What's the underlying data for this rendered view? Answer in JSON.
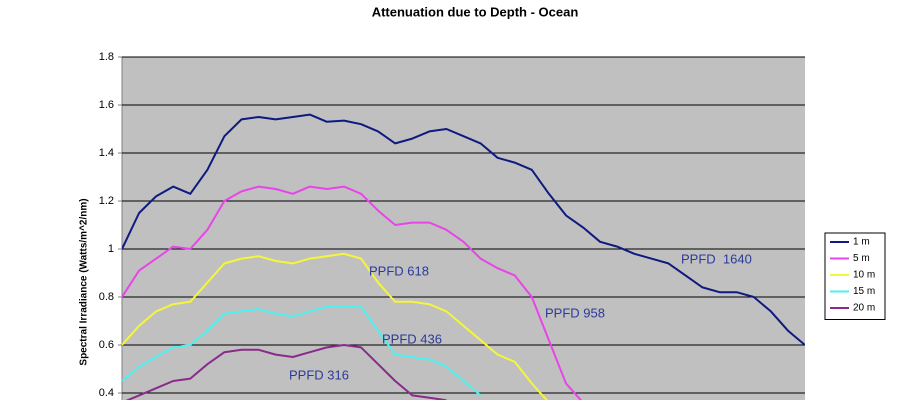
{
  "chart_data": {
    "type": "line",
    "title": "Attenuation due to Depth - Ocean",
    "y_label": "Spectral Irradiance (Watts/m^2/nm)",
    "categories": [
      null,
      null,
      null,
      null,
      null,
      null,
      null,
      null,
      null,
      null,
      null,
      null,
      null,
      null,
      null,
      null,
      null,
      null,
      null,
      null,
      null,
      null,
      null,
      null,
      null,
      null,
      null,
      null,
      null,
      null,
      null,
      null,
      null,
      null,
      null,
      null,
      null,
      null,
      null,
      null,
      null
    ],
    "series": [
      {
        "name": "1 m",
        "color": "#0d1a80",
        "values": [
          1.0,
          1.15,
          1.22,
          1.26,
          1.23,
          1.33,
          1.47,
          1.54,
          1.55,
          1.54,
          1.55,
          1.56,
          1.53,
          1.535,
          1.52,
          1.49,
          1.44,
          1.46,
          1.49,
          1.5,
          1.47,
          1.44,
          1.38,
          1.36,
          1.33,
          1.23,
          1.14,
          1.09,
          1.03,
          1.01,
          0.98,
          0.96,
          0.94,
          0.89,
          0.84,
          0.82,
          0.82,
          0.8,
          0.74,
          0.66,
          0.6
        ]
      },
      {
        "name": "5 m",
        "color": "#e845e8",
        "values": [
          0.8,
          0.91,
          0.96,
          1.01,
          1.0,
          1.08,
          1.2,
          1.24,
          1.26,
          1.25,
          1.23,
          1.26,
          1.25,
          1.26,
          1.23,
          1.16,
          1.1,
          1.11,
          1.11,
          1.08,
          1.03,
          0.96,
          0.92,
          0.89,
          0.8,
          0.62,
          0.44,
          0.36,
          null,
          null,
          null,
          null,
          null,
          null,
          null,
          null,
          null,
          null,
          null,
          null,
          null
        ]
      },
      {
        "name": "10 m",
        "color": "#f5f53a",
        "values": [
          0.6,
          0.68,
          0.74,
          0.77,
          0.78,
          0.86,
          0.94,
          0.96,
          0.97,
          0.95,
          0.94,
          0.96,
          0.97,
          0.98,
          0.96,
          0.86,
          0.78,
          0.78,
          0.77,
          0.74,
          0.68,
          0.62,
          0.56,
          0.53,
          0.44,
          0.36,
          null,
          null,
          null,
          null,
          null,
          null,
          null,
          null,
          null,
          null,
          null,
          null,
          null,
          null,
          null
        ]
      },
      {
        "name": "15 m",
        "color": "#4ef0f0",
        "values": [
          0.45,
          0.51,
          0.55,
          0.59,
          0.6,
          0.66,
          0.73,
          0.74,
          0.75,
          0.73,
          0.72,
          0.74,
          0.76,
          0.76,
          0.76,
          0.66,
          0.56,
          0.55,
          0.54,
          0.51,
          0.45,
          0.39,
          null,
          null,
          null,
          null,
          null,
          null,
          null,
          null,
          null,
          null,
          null,
          null,
          null,
          null,
          null,
          null,
          null,
          null,
          null
        ]
      },
      {
        "name": "20 m",
        "color": "#8a2a8a",
        "values": [
          0.36,
          0.39,
          0.42,
          0.45,
          0.46,
          0.52,
          0.57,
          0.58,
          0.58,
          0.56,
          0.55,
          0.57,
          0.59,
          0.6,
          0.59,
          0.52,
          0.45,
          0.39,
          0.38,
          0.37,
          null,
          null,
          null,
          null,
          null,
          null,
          null,
          null,
          null,
          null,
          null,
          null,
          null,
          null,
          null,
          null,
          null,
          null,
          null,
          null,
          null
        ]
      }
    ],
    "annotations": [
      "PPFD  1640",
      "PPFD 958",
      "PPFD 618",
      "PPFD 436",
      "PPFD 316"
    ],
    "ylim": [
      0.4,
      1.8
    ],
    "yticks": [
      0.4,
      0.6,
      0.8,
      1,
      1.2,
      1.4,
      1.6,
      1.8
    ],
    "grid": true,
    "legend": "right"
  }
}
